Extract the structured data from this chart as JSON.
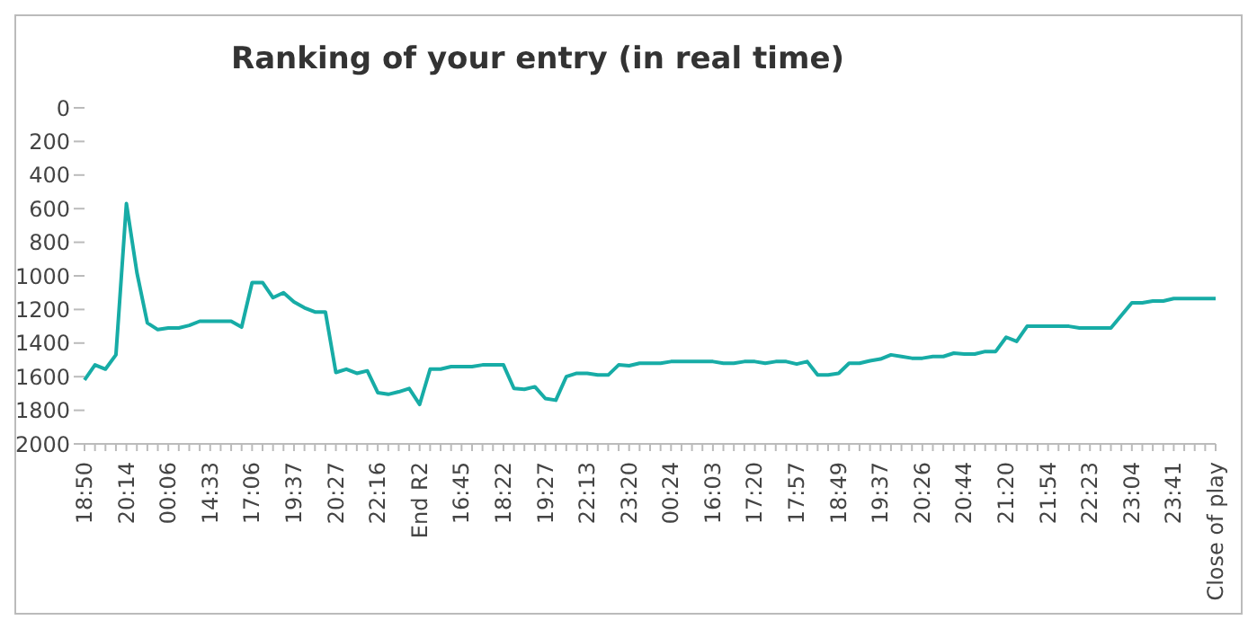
{
  "chart_data": {
    "type": "line",
    "title": "Ranking of your entry (in real time)",
    "categories": [
      "18:50",
      null,
      null,
      null,
      "20:14",
      null,
      null,
      null,
      "00:06",
      null,
      null,
      null,
      "14:33",
      null,
      null,
      null,
      "17:06",
      null,
      null,
      null,
      "19:37",
      null,
      null,
      null,
      "20:27",
      null,
      null,
      null,
      "22:16",
      null,
      null,
      null,
      "End R2",
      null,
      null,
      null,
      "16:45",
      null,
      null,
      null,
      "18:22",
      null,
      null,
      null,
      "19:27",
      null,
      null,
      null,
      "22:13",
      null,
      null,
      null,
      "23:20",
      null,
      null,
      null,
      "00:24",
      null,
      null,
      null,
      "16:03",
      null,
      null,
      null,
      "17:20",
      null,
      null,
      null,
      "17:57",
      null,
      null,
      null,
      "18:49",
      null,
      null,
      null,
      "19:37",
      null,
      null,
      null,
      "20:26",
      null,
      null,
      null,
      "20:44",
      null,
      null,
      null,
      "21:20",
      null,
      null,
      null,
      "21:54",
      null,
      null,
      null,
      "22:23",
      null,
      null,
      null,
      "23:04",
      null,
      null,
      null,
      "23:41",
      null,
      null,
      null,
      "Close of play"
    ],
    "series": [
      {
        "color": "#17aca6",
        "values": [
          1620,
          1530,
          1555,
          1470,
          570,
          980,
          1280,
          1320,
          1310,
          1310,
          1295,
          1270,
          1270,
          1270,
          1270,
          1305,
          1040,
          1040,
          1130,
          1100,
          1155,
          1190,
          1215,
          1215,
          1575,
          1555,
          1580,
          1565,
          1695,
          1705,
          1690,
          1670,
          1765,
          1555,
          1555,
          1540,
          1540,
          1540,
          1530,
          1530,
          1530,
          1670,
          1675,
          1660,
          1730,
          1740,
          1600,
          1580,
          1580,
          1590,
          1590,
          1530,
          1535,
          1520,
          1520,
          1520,
          1510,
          1510,
          1510,
          1510,
          1510,
          1520,
          1520,
          1510,
          1510,
          1520,
          1510,
          1510,
          1525,
          1510,
          1590,
          1590,
          1580,
          1520,
          1520,
          1505,
          1495,
          1470,
          1480,
          1490,
          1490,
          1480,
          1480,
          1460,
          1465,
          1465,
          1450,
          1450,
          1365,
          1390,
          1300,
          1300,
          1300,
          1300,
          1300,
          1310,
          1310,
          1310,
          1310,
          1235,
          1160,
          1160,
          1150,
          1150,
          1135,
          1135,
          1135,
          1135,
          1135
        ]
      }
    ],
    "ylim": [
      2000,
      0
    ],
    "yticks": [
      0,
      200,
      400,
      600,
      800,
      1000,
      1200,
      1400,
      1600,
      1800,
      2000
    ],
    "grid": false,
    "legend": false,
    "marker": "none",
    "line_style": "solid"
  }
}
